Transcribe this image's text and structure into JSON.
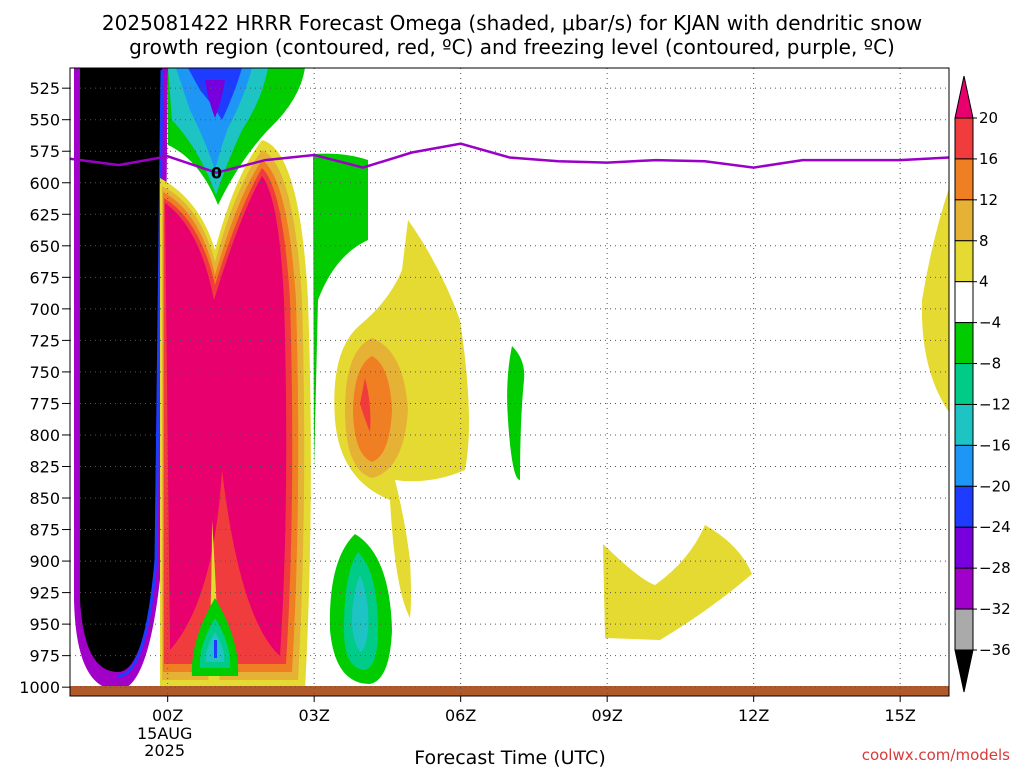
{
  "chart_data": {
    "type": "heatmap",
    "title_line1": "2025081422 HRRR Forecast Omega (shaded, μbar/s) for KJAN with dendritic snow",
    "title_line2": "growth region (contoured, red, ºC) and freezing level (contoured, purple, ºC)",
    "xlabel": "Forecast Time (UTC)",
    "ylabel": "",
    "yaxis_inverted": true,
    "y_ticks": [
      525,
      550,
      575,
      600,
      625,
      650,
      675,
      700,
      725,
      750,
      775,
      800,
      825,
      850,
      875,
      900,
      925,
      950,
      975,
      1000
    ],
    "ylim": [
      1007,
      509
    ],
    "x_ticks": [
      {
        "hour": 0,
        "label": "00Z",
        "sub1": "15AUG",
        "sub2": "2025"
      },
      {
        "hour": 3,
        "label": "03Z",
        "sub1": "",
        "sub2": ""
      },
      {
        "hour": 6,
        "label": "06Z",
        "sub1": "",
        "sub2": ""
      },
      {
        "hour": 9,
        "label": "09Z",
        "sub1": "",
        "sub2": ""
      },
      {
        "hour": 12,
        "label": "12Z",
        "sub1": "",
        "sub2": ""
      },
      {
        "hour": 15,
        "label": "15Z",
        "sub1": "",
        "sub2": ""
      }
    ],
    "xlim": [
      -2,
      16
    ],
    "grid": true,
    "colorbar": {
      "labels": [
        20,
        16,
        12,
        8,
        4,
        -4,
        -8,
        -12,
        -16,
        -20,
        -24,
        -28,
        -32,
        -36
      ],
      "colors": [
        "#e8006f",
        "#f03c3c",
        "#f07e22",
        "#e5b235",
        "#e5da31",
        "#ffffff",
        "#00cc00",
        "#00cc88",
        "#1ec3c3",
        "#1e96f5",
        "#1e3cff",
        "#7800dc",
        "#a000c8",
        "#aaaaaa",
        "#000000"
      ]
    },
    "freezing_level": {
      "label": "0",
      "color": "#9a00c8",
      "points": [
        [
          -2,
          581
        ],
        [
          -1,
          586
        ],
        [
          0,
          579
        ],
        [
          1,
          592
        ],
        [
          2,
          582
        ],
        [
          3,
          578
        ],
        [
          4,
          588
        ],
        [
          5,
          576
        ],
        [
          6,
          569
        ],
        [
          7,
          580
        ],
        [
          8,
          583
        ],
        [
          9,
          584
        ],
        [
          10,
          582
        ],
        [
          11,
          583
        ],
        [
          12,
          588
        ],
        [
          13,
          582
        ],
        [
          14,
          582
        ],
        [
          15,
          582
        ],
        [
          16,
          580
        ]
      ]
    },
    "ground_color": "#b05a2c",
    "source": "coolwx.com/models"
  }
}
